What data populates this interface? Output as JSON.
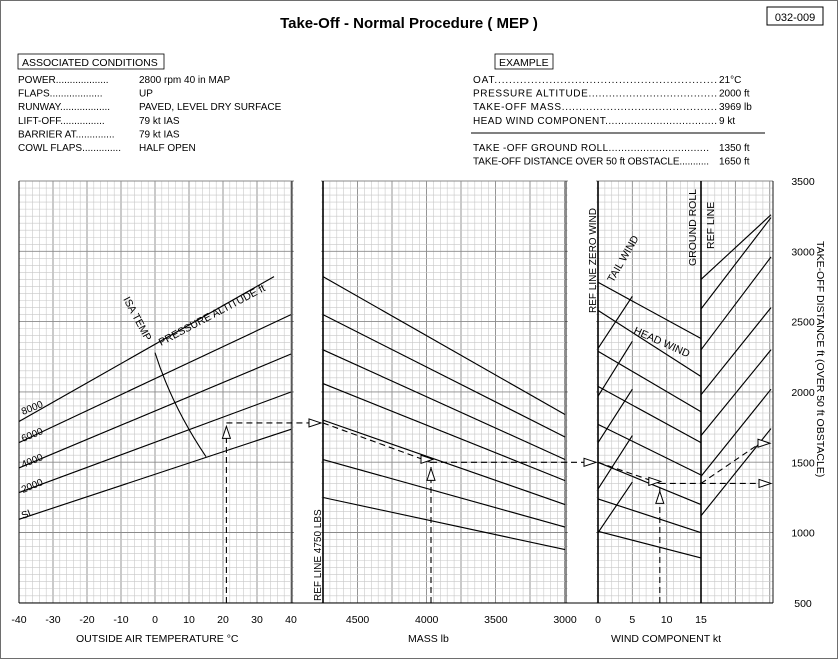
{
  "chart_data": {
    "type": "line",
    "title": "Take-Off   -   Normal Procedure ( MEP )",
    "chart_id": "032-009",
    "associated_conditions": {
      "heading": "ASSOCIATED CONDITIONS",
      "rows": [
        {
          "label": "POWER",
          "value": "2800 rpm  40 in MAP"
        },
        {
          "label": "FLAPS",
          "value": "UP"
        },
        {
          "label": "RUNWAY",
          "value": "PAVED, LEVEL DRY SURFACE"
        },
        {
          "label": "LIFT-OFF",
          "value": "79 kt IAS"
        },
        {
          "label": "BARRIER AT",
          "value": "79 kt IAS"
        },
        {
          "label": "COWL FLAPS",
          "value": "HALF OPEN"
        }
      ]
    },
    "example": {
      "heading": "EXAMPLE",
      "rows": [
        {
          "label": "OAT",
          "value": "21°C"
        },
        {
          "label": "PRESSURE ALTITUDE",
          "value": "2000 ft"
        },
        {
          "label": "TAKE-OFF MASS",
          "value": "3969 lb"
        },
        {
          "label": "HEAD WIND COMPONENT",
          "value": "9 kt"
        }
      ],
      "results": [
        {
          "label": "TAKE -OFF GROUND ROLL",
          "value": "1350 ft"
        },
        {
          "label": "TAKE-OFF DISTANCE OVER 50 ft OBSTACLE",
          "value": "1650 ft"
        }
      ]
    },
    "panels": [
      {
        "name": "temperature",
        "xlabel": "OUTSIDE AIR TEMPERATURE  °C",
        "xlim": [
          -40,
          40
        ],
        "ticks": [
          -40,
          -30,
          -20,
          -10,
          0,
          10,
          20,
          30,
          40
        ],
        "curve_label": "PRESSURE ALTITUDE  ft",
        "isa_label": "ISA TEMP",
        "series": [
          {
            "name": "SL",
            "x": [
              -40,
              40
            ],
            "y": [
              1095,
              1735
            ]
          },
          {
            "name": "2000",
            "x": [
              -40,
              40
            ],
            "y": [
              1285,
              2000
            ]
          },
          {
            "name": "4000",
            "x": [
              -40,
              40
            ],
            "y": [
              1460,
              2270
            ]
          },
          {
            "name": "6000",
            "x": [
              -40,
              40
            ],
            "y": [
              1640,
              2550
            ]
          },
          {
            "name": "8000",
            "x": [
              -40,
              35
            ],
            "y": [
              1790,
              2820
            ]
          }
        ],
        "isa_line": {
          "x": [
            0,
            15
          ],
          "y": [
            2280,
            1540
          ]
        }
      },
      {
        "name": "mass",
        "xlabel": "MASS  lb",
        "xlim": [
          4750,
          3000
        ],
        "ticks": [
          4500,
          4000,
          3500,
          3000
        ],
        "ref_label": "REF LINE  4750 LBS",
        "guide_lines": [
          {
            "x": [
              4750,
              3000
            ],
            "y": [
              1250,
              880
            ]
          },
          {
            "x": [
              4750,
              3000
            ],
            "y": [
              1520,
              1040
            ]
          },
          {
            "x": [
              4750,
              3000
            ],
            "y": [
              1800,
              1200
            ]
          },
          {
            "x": [
              4750,
              3000
            ],
            "y": [
              2060,
              1370
            ]
          },
          {
            "x": [
              4750,
              3000
            ],
            "y": [
              2300,
              1520
            ]
          },
          {
            "x": [
              4750,
              3000
            ],
            "y": [
              2550,
              1680
            ]
          },
          {
            "x": [
              4750,
              3000
            ],
            "y": [
              2820,
              1840
            ]
          }
        ]
      },
      {
        "name": "wind",
        "xlabel": "WIND COMPONENT  kt",
        "xlim": [
          0,
          15
        ],
        "ticks": [
          0,
          5,
          10,
          15
        ],
        "labels": [
          "REF LINE  ZERO WIND",
          "TAIL WIND",
          "HEAD WIND",
          "GROUND ROLL",
          "REF LINE"
        ],
        "head_wind_lines": [
          {
            "x": [
              0,
              15
            ],
            "y": [
              1010,
              820
            ]
          },
          {
            "x": [
              0,
              15
            ],
            "y": [
              1240,
              1000
            ]
          },
          {
            "x": [
              0,
              15
            ],
            "y": [
              1500,
              1200
            ]
          },
          {
            "x": [
              0,
              15
            ],
            "y": [
              1770,
              1410
            ]
          },
          {
            "x": [
              0,
              15
            ],
            "y": [
              2040,
              1640
            ]
          },
          {
            "x": [
              0,
              15
            ],
            "y": [
              2290,
              1860
            ]
          },
          {
            "x": [
              0,
              15
            ],
            "y": [
              2580,
              2110
            ]
          },
          {
            "x": [
              0,
              15
            ],
            "y": [
              2780,
              2380
            ]
          }
        ],
        "tail_wind_lines": [
          {
            "x": [
              0,
              5
            ],
            "y": [
              1000,
              1360
            ]
          },
          {
            "x": [
              0,
              5
            ],
            "y": [
              1310,
              1690
            ]
          },
          {
            "x": [
              0,
              5
            ],
            "y": [
              1640,
              2020
            ]
          },
          {
            "x": [
              0,
              5
            ],
            "y": [
              1970,
              2360
            ]
          },
          {
            "x": [
              0,
              5
            ],
            "y": [
              2310,
              2680
            ]
          }
        ],
        "ground_roll_lines": [
          {
            "x": [
              15,
              25
            ],
            "y": [
              1120,
              1740
            ]
          },
          {
            "x": [
              15,
              25
            ],
            "y": [
              1400,
              2020
            ]
          },
          {
            "x": [
              15,
              25
            ],
            "y": [
              1690,
              2300
            ]
          },
          {
            "x": [
              15,
              25
            ],
            "y": [
              1980,
              2600
            ]
          },
          {
            "x": [
              15,
              25
            ],
            "y": [
              2300,
              2960
            ]
          },
          {
            "x": [
              15,
              25
            ],
            "y": [
              2590,
              3240
            ]
          },
          {
            "x": [
              15,
              25
            ],
            "y": [
              2800,
              3260
            ]
          }
        ]
      }
    ],
    "right_axis": {
      "label": "TAKE-OFF DISTANCE   ft   (OVER 50 ft  OBSTACLE)",
      "ylim": [
        500,
        3500
      ],
      "ticks": [
        500,
        1000,
        1500,
        2000,
        2500,
        3000,
        3500
      ]
    },
    "example_path": {
      "oat": 21,
      "pressure_altitude": 2000,
      "mass": 3969,
      "head_wind": 9,
      "ground_roll": 1350,
      "distance_over_50ft": 1650
    },
    "grid": true
  }
}
